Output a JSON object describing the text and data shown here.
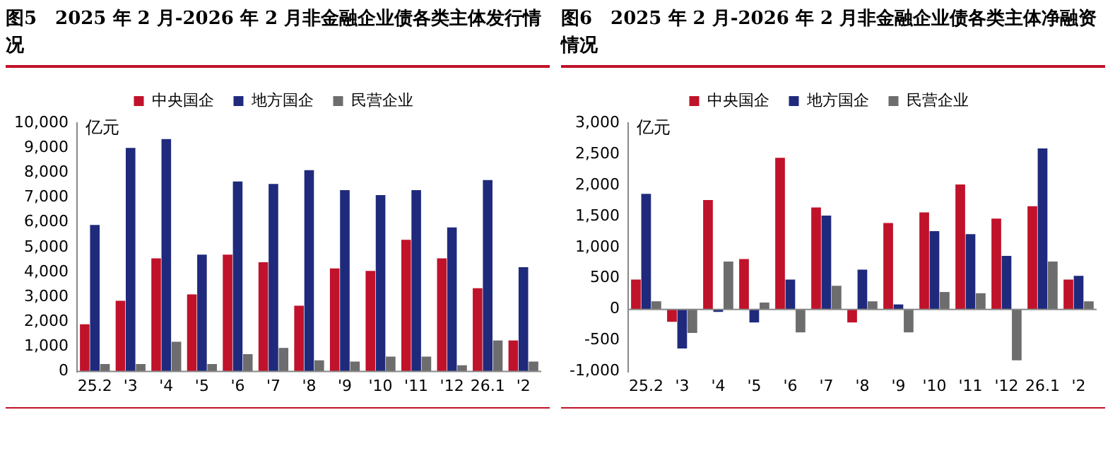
{
  "chart_data": [
    {
      "type": "bar",
      "title": "图5　2025 年 2 月-2026 年 2 月非金融企业债各类主体发行情况",
      "ylabel": "亿元",
      "categories": [
        "25.2",
        "'3",
        "'4",
        "'5",
        "'6",
        "'7",
        "'8",
        "'9",
        "'10",
        "'11",
        "'12",
        "26.1",
        "'2"
      ],
      "series": [
        {
          "name": "中央国企",
          "color": "#c0122a",
          "values": [
            1900,
            2850,
            4550,
            3100,
            4700,
            4400,
            2650,
            4150,
            4050,
            5300,
            4550,
            3350,
            1250
          ]
        },
        {
          "name": "地方国企",
          "color": "#1f2a7c",
          "values": [
            5900,
            9000,
            9350,
            4700,
            7650,
            7550,
            8100,
            7300,
            7100,
            7300,
            5800,
            7700,
            4200
          ]
        },
        {
          "name": "民营企业",
          "color": "#6d6d6d",
          "values": [
            300,
            300,
            1200,
            300,
            700,
            950,
            450,
            400,
            600,
            600,
            250,
            1250,
            400
          ]
        }
      ],
      "ylim": [
        0,
        10000
      ],
      "yticks": [
        0,
        {
          "value": 1000,
          "label": "1,000"
        },
        {
          "value": 2000,
          "label": "2,000"
        },
        {
          "value": 3000,
          "label": "3,000"
        },
        {
          "value": 4000,
          "label": "4,000"
        },
        {
          "value": 5000,
          "label": "5,000"
        },
        {
          "value": 6000,
          "label": "6,000"
        },
        {
          "value": 7000,
          "label": "7,000"
        },
        {
          "value": 8000,
          "label": "8,000"
        },
        {
          "value": 9000,
          "label": "9,000"
        },
        {
          "value": 10000,
          "label": "10,000"
        }
      ],
      "legend": "top"
    },
    {
      "type": "bar",
      "title": "图6　2025 年 2 月-2026 年 2 月非金融企业债各类主体净融资情况",
      "ylabel": "亿元",
      "categories": [
        "25.2",
        "'3",
        "'4",
        "'5",
        "'6",
        "'7",
        "'8",
        "'9",
        "'10",
        "'11",
        "'12",
        "26.1",
        "'2"
      ],
      "series": [
        {
          "name": "中央国企",
          "color": "#c0122a",
          "values": [
            480,
            -200,
            1760,
            810,
            2440,
            1640,
            -210,
            1390,
            1560,
            2010,
            1460,
            1660,
            480
          ]
        },
        {
          "name": "地方国企",
          "color": "#1f2a7c",
          "values": [
            1860,
            -630,
            -40,
            -210,
            480,
            1510,
            640,
            80,
            1260,
            1210,
            860,
            2590,
            540
          ]
        },
        {
          "name": "民营企业",
          "color": "#6d6d6d",
          "values": [
            130,
            -380,
            770,
            110,
            -370,
            380,
            130,
            -370,
            280,
            260,
            -820,
            770,
            130
          ]
        }
      ],
      "ylim": [
        -1000,
        3000
      ],
      "yticks": [
        {
          "value": -1000,
          "label": "-1,000"
        },
        -500,
        0,
        500,
        {
          "value": 1000,
          "label": "1,000"
        },
        {
          "value": 1500,
          "label": "1,500"
        },
        {
          "value": 2000,
          "label": "2,000"
        },
        {
          "value": 2500,
          "label": "2,500"
        },
        {
          "value": 3000,
          "label": "3,000"
        }
      ],
      "legend": "top"
    }
  ]
}
